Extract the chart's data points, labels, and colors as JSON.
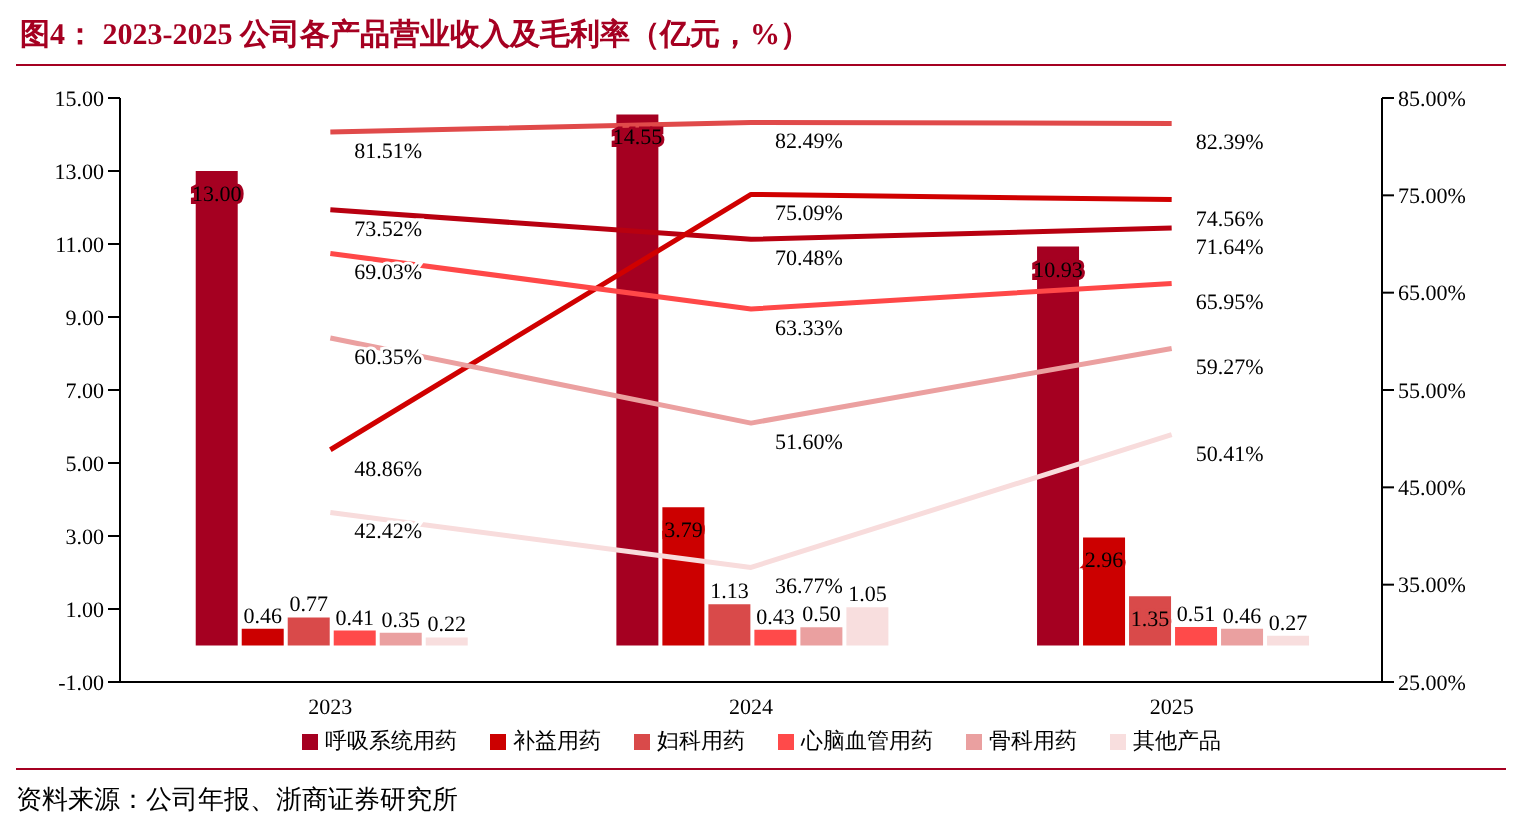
{
  "chart_data": {
    "type": "bar",
    "title": "图4：  2023-2025 公司各产品营业收入及毛利率（亿元，%）",
    "annotations": [
      "资料来源：公司年报、浙商证券研究所"
    ],
    "categories": [
      "2023",
      "2024",
      "2025"
    ],
    "series": [
      {
        "name": "呼吸系统用药",
        "color": "#a50021",
        "values": [
          13.0,
          14.55,
          10.93
        ],
        "value_labels": [
          "13.00",
          "14.55",
          "10.93"
        ]
      },
      {
        "name": "补益用药",
        "color": "#cc0000",
        "values": [
          0.46,
          3.79,
          2.96
        ],
        "value_labels": [
          "0.46",
          "3.79",
          "2.96"
        ]
      },
      {
        "name": "妇科用药",
        "color": "#d94a4a",
        "values": [
          0.77,
          1.13,
          1.35
        ],
        "value_labels": [
          "0.77",
          "1.13",
          "1.35"
        ]
      },
      {
        "name": "心脑血管用药",
        "color": "#ff4a4a",
        "values": [
          0.41,
          0.43,
          0.51
        ],
        "value_labels": [
          "0.41",
          "0.43",
          "0.51"
        ]
      },
      {
        "name": "骨科用药",
        "color": "#eaa0a0",
        "values": [
          0.35,
          0.5,
          0.46
        ],
        "value_labels": [
          "0.35",
          "0.50",
          "0.46"
        ]
      },
      {
        "name": "其他产品",
        "color": "#f8dede",
        "values": [
          0.22,
          1.05,
          0.27
        ],
        "value_labels": [
          "0.22",
          "1.05",
          "0.27"
        ]
      },
      {
        "type": "line",
        "axis": "y2",
        "color": "#e04a4a",
        "values": [
          81.51,
          82.49,
          82.39
        ],
        "value_labels": [
          "81.51%",
          "82.49%",
          "82.39%"
        ]
      },
      {
        "type": "line",
        "axis": "y2",
        "color": "#b80010",
        "values": [
          73.52,
          70.48,
          71.64
        ],
        "value_labels": [
          "73.52%",
          "70.48%",
          "71.64%"
        ]
      },
      {
        "type": "line",
        "axis": "y2",
        "color": "#d00000",
        "values": [
          48.86,
          75.09,
          74.56
        ],
        "value_labels": [
          "48.86%",
          "75.09%",
          "74.56%"
        ]
      },
      {
        "type": "line",
        "axis": "y2",
        "color": "#ff4848",
        "values": [
          69.03,
          63.33,
          65.95
        ],
        "value_labels": [
          "69.03%",
          "63.33%",
          "65.95%"
        ]
      },
      {
        "type": "line",
        "axis": "y2",
        "color": "#eba0a0",
        "values": [
          60.35,
          51.6,
          59.27
        ],
        "value_labels": [
          "60.35%",
          "51.60%",
          "59.27%"
        ]
      },
      {
        "type": "line",
        "axis": "y2",
        "color": "#f8dcdc",
        "values": [
          42.42,
          36.77,
          50.41
        ],
        "value_labels": [
          "42.42%",
          "36.77%",
          "50.41%"
        ]
      }
    ],
    "ylim": [
      -1,
      15
    ],
    "yticks": [
      {
        "value": -1,
        "label": "-1.00"
      },
      {
        "value": 1,
        "label": "1.00"
      },
      {
        "value": 3,
        "label": "3.00"
      },
      {
        "value": 5,
        "label": "5.00"
      },
      {
        "value": 7,
        "label": "7.00"
      },
      {
        "value": 9,
        "label": "9.00"
      },
      {
        "value": 11,
        "label": "11.00"
      },
      {
        "value": 13,
        "label": "13.00"
      },
      {
        "value": 15,
        "label": "15.00"
      }
    ],
    "y2lim": [
      25,
      85
    ],
    "y2ticks": [
      {
        "value": 25,
        "label": "25.00%"
      },
      {
        "value": 35,
        "label": "35.00%"
      },
      {
        "value": 45,
        "label": "45.00%"
      },
      {
        "value": 55,
        "label": "55.00%"
      },
      {
        "value": 65,
        "label": "65.00%"
      },
      {
        "value": 75,
        "label": "75.00%"
      },
      {
        "value": 85,
        "label": "85.00%"
      }
    ],
    "grid": false,
    "legend": "bottom"
  }
}
